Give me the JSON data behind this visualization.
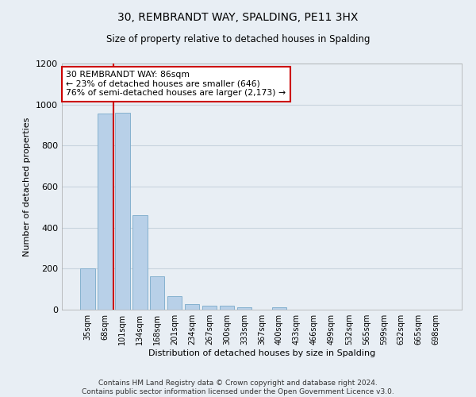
{
  "title": "30, REMBRANDT WAY, SPALDING, PE11 3HX",
  "subtitle": "Size of property relative to detached houses in Spalding",
  "xlabel": "Distribution of detached houses by size in Spalding",
  "ylabel": "Number of detached properties",
  "categories": [
    "35sqm",
    "68sqm",
    "101sqm",
    "134sqm",
    "168sqm",
    "201sqm",
    "234sqm",
    "267sqm",
    "300sqm",
    "333sqm",
    "367sqm",
    "400sqm",
    "433sqm",
    "466sqm",
    "499sqm",
    "532sqm",
    "565sqm",
    "599sqm",
    "632sqm",
    "665sqm",
    "698sqm"
  ],
  "values": [
    200,
    955,
    960,
    462,
    162,
    67,
    27,
    20,
    18,
    12,
    0,
    10,
    0,
    0,
    0,
    0,
    0,
    0,
    0,
    0,
    0
  ],
  "bar_color": "#b8d0e8",
  "bar_edge_color": "#7aaaca",
  "vline_x": 1.5,
  "vline_color": "#cc0000",
  "annotation_text": "30 REMBRANDT WAY: 86sqm\n← 23% of detached houses are smaller (646)\n76% of semi-detached houses are larger (2,173) →",
  "annotation_box_color": "#cc0000",
  "ylim": [
    0,
    1200
  ],
  "yticks": [
    0,
    200,
    400,
    600,
    800,
    1000,
    1200
  ],
  "footer": "Contains HM Land Registry data © Crown copyright and database right 2024.\nContains public sector information licensed under the Open Government Licence v3.0.",
  "bg_color": "#e8eef4",
  "plot_bg_color": "#e8eef4",
  "grid_color": "#c8d4de"
}
